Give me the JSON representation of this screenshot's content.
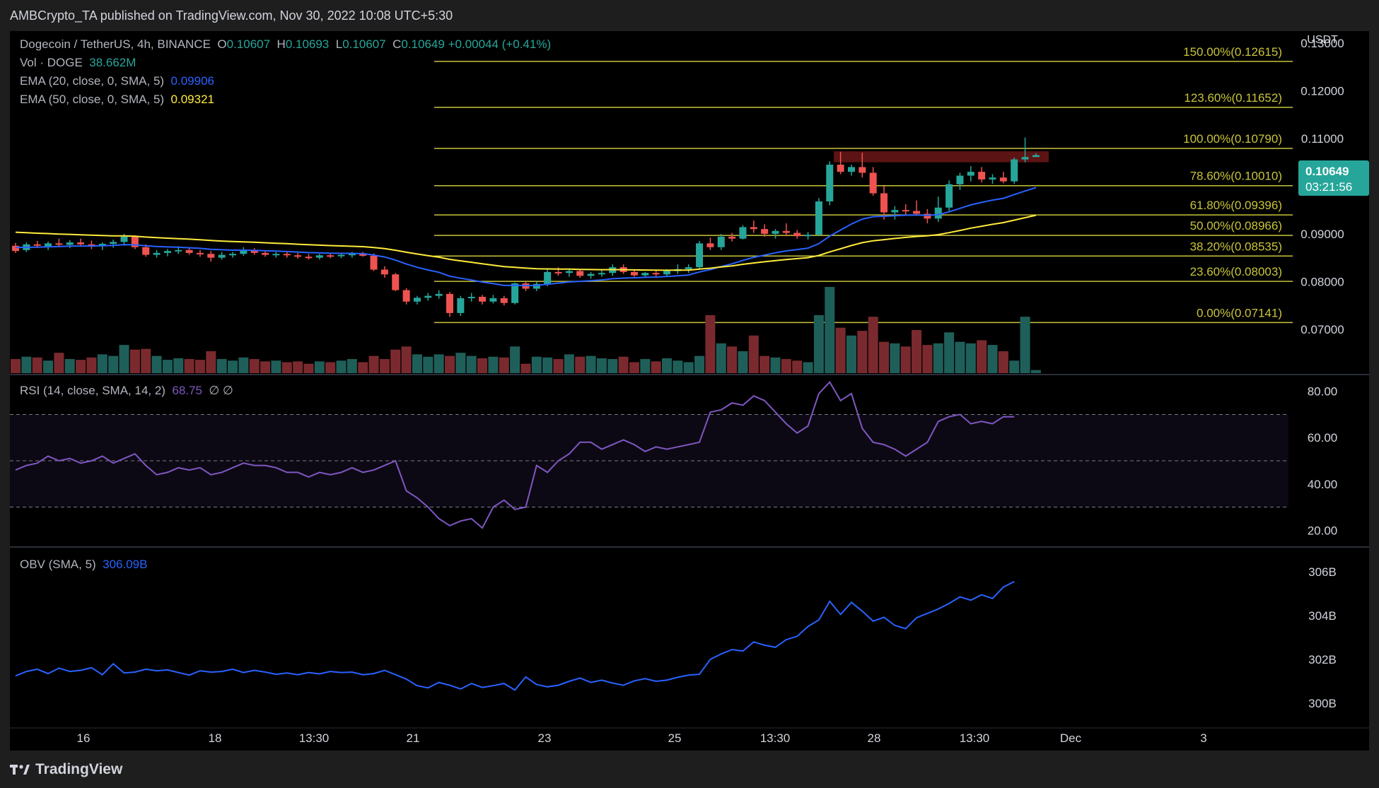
{
  "header": {
    "published": "AMBCrypto_TA published on TradingView.com, Nov 30, 2022 10:08 UTC+5:30"
  },
  "legend": {
    "symbol": "Dogecoin / TetherUS, 4h, BINANCE",
    "o_label": "O",
    "o_value": "0.10607",
    "h_label": "H",
    "h_value": "0.10693",
    "l_label": "L",
    "l_value": "0.10607",
    "c_label": "C",
    "c_value": "0.10649",
    "change": "+0.00044 (+0.41%)",
    "vol_label": "Vol · DOGE",
    "vol_value": "38.662M",
    "ema20_label": "EMA (20, close, 0, SMA, 5)",
    "ema20_value": "0.09906",
    "ema50_label": "EMA (50, close, 0, SMA, 5)",
    "ema50_value": "0.09321",
    "rsi_label": "RSI (14, close, SMA, 14, 2)",
    "rsi_value": "68.75",
    "rsi_extra": "∅ ∅",
    "obv_label": "OBV (SMA, 5)",
    "obv_value": "306.09B"
  },
  "currency": "USDT",
  "last_price": {
    "price": "0.10649",
    "countdown": "03:21:56"
  },
  "footer": {
    "brand": "TradingView"
  },
  "colors": {
    "up": "#26a69a",
    "down": "#ef5350",
    "ema20": "#2962ff",
    "ema50": "#ffeb3b",
    "fib": "#c8c43a",
    "rsi": "#7e57c2",
    "obv": "#2962ff"
  },
  "chart_data": [
    {
      "type": "candlestick",
      "title": "Dogecoin / TetherUS, 4h, BINANCE",
      "ylim": [
        0.0605,
        0.1325
      ],
      "y_ticks": [
        "0.07000",
        "0.08000",
        "0.09000",
        "0.10000",
        "0.11000",
        "0.12000",
        "0.13000"
      ],
      "x_ticks": [
        "16",
        "18",
        "13:30",
        "21",
        "23",
        "25",
        "13:30",
        "28",
        "13:30",
        "Dec",
        "3"
      ],
      "fib_levels": [
        {
          "label": "0.00%(0.07141)",
          "value": 0.07141
        },
        {
          "label": "23.60%(0.08003)",
          "value": 0.08003
        },
        {
          "label": "38.20%(0.08535)",
          "value": 0.08535
        },
        {
          "label": "50.00%(0.08966)",
          "value": 0.08966
        },
        {
          "label": "61.80%(0.09396)",
          "value": 0.09396
        },
        {
          "label": "78.60%(0.10010)",
          "value": 0.1001
        },
        {
          "label": "100.00%(0.10790)",
          "value": 0.1079
        },
        {
          "label": "123.60%(0.11652)",
          "value": 0.11652
        },
        {
          "label": "150.00%(0.12615)",
          "value": 0.12615
        }
      ],
      "resistance_zone": [
        0.105,
        0.1073
      ],
      "candles": [
        [
          0.0875,
          0.0881,
          0.086,
          0.0864
        ],
        [
          0.0866,
          0.0882,
          0.0862,
          0.0878
        ],
        [
          0.0878,
          0.0885,
          0.087,
          0.0875
        ],
        [
          0.0874,
          0.0884,
          0.0866,
          0.088
        ],
        [
          0.088,
          0.089,
          0.0872,
          0.0877
        ],
        [
          0.0877,
          0.0887,
          0.087,
          0.0882
        ],
        [
          0.0882,
          0.089,
          0.0874,
          0.0878
        ],
        [
          0.0878,
          0.0886,
          0.0868,
          0.0874
        ],
        [
          0.0874,
          0.0882,
          0.0866,
          0.0879
        ],
        [
          0.0879,
          0.0888,
          0.0871,
          0.0883
        ],
        [
          0.0883,
          0.09,
          0.0875,
          0.0894
        ],
        [
          0.0894,
          0.0897,
          0.0868,
          0.0872
        ],
        [
          0.0872,
          0.0878,
          0.0852,
          0.0856
        ],
        [
          0.0856,
          0.0866,
          0.085,
          0.086
        ],
        [
          0.086,
          0.0868,
          0.0853,
          0.0864
        ],
        [
          0.0864,
          0.0874,
          0.0858,
          0.0866
        ],
        [
          0.0866,
          0.0872,
          0.0856,
          0.086
        ],
        [
          0.086,
          0.0866,
          0.0852,
          0.0858
        ],
        [
          0.0858,
          0.0864,
          0.0842,
          0.085
        ],
        [
          0.085,
          0.0862,
          0.0846,
          0.0856
        ],
        [
          0.0856,
          0.0862,
          0.085,
          0.0858
        ],
        [
          0.0858,
          0.0872,
          0.0854,
          0.0866
        ],
        [
          0.0866,
          0.087,
          0.0856,
          0.086
        ],
        [
          0.086,
          0.0866,
          0.0852,
          0.0856
        ],
        [
          0.0856,
          0.0862,
          0.085,
          0.0858
        ],
        [
          0.0858,
          0.0862,
          0.085,
          0.0855
        ],
        [
          0.0855,
          0.086,
          0.0848,
          0.0852
        ],
        [
          0.0852,
          0.0858,
          0.0846,
          0.085
        ],
        [
          0.085,
          0.0858,
          0.0846,
          0.0855
        ],
        [
          0.0855,
          0.086,
          0.0849,
          0.0853
        ],
        [
          0.0853,
          0.0858,
          0.0849,
          0.0856
        ],
        [
          0.0856,
          0.0862,
          0.085,
          0.0858
        ],
        [
          0.0858,
          0.0862,
          0.0852,
          0.0854
        ],
        [
          0.0854,
          0.0859,
          0.0822,
          0.0825
        ],
        [
          0.0825,
          0.0832,
          0.0808,
          0.0815
        ],
        [
          0.0815,
          0.0818,
          0.078,
          0.0782
        ],
        [
          0.0782,
          0.0786,
          0.0752,
          0.0758
        ],
        [
          0.0758,
          0.077,
          0.0752,
          0.0766
        ],
        [
          0.0766,
          0.0776,
          0.076,
          0.077
        ],
        [
          0.077,
          0.0782,
          0.0764,
          0.0774
        ],
        [
          0.0774,
          0.0778,
          0.0726,
          0.0734
        ],
        [
          0.0734,
          0.077,
          0.0728,
          0.0765
        ],
        [
          0.0765,
          0.0776,
          0.0758,
          0.0768
        ],
        [
          0.0768,
          0.0772,
          0.0752,
          0.0758
        ],
        [
          0.0758,
          0.0772,
          0.0754,
          0.0765
        ],
        [
          0.0765,
          0.077,
          0.075,
          0.0755
        ],
        [
          0.0755,
          0.0798,
          0.0752,
          0.0796
        ],
        [
          0.0796,
          0.08,
          0.078,
          0.0785
        ],
        [
          0.0785,
          0.08,
          0.078,
          0.0795
        ],
        [
          0.0795,
          0.0825,
          0.079,
          0.082
        ],
        [
          0.082,
          0.083,
          0.0812,
          0.0818
        ],
        [
          0.0818,
          0.0826,
          0.081,
          0.0822
        ],
        [
          0.0822,
          0.0826,
          0.0808,
          0.0812
        ],
        [
          0.0812,
          0.082,
          0.0806,
          0.0816
        ],
        [
          0.0816,
          0.0826,
          0.081,
          0.0818
        ],
        [
          0.0818,
          0.0836,
          0.0812,
          0.083
        ],
        [
          0.083,
          0.0836,
          0.0816,
          0.082
        ],
        [
          0.082,
          0.0826,
          0.081,
          0.0813
        ],
        [
          0.0813,
          0.082,
          0.0808,
          0.0818
        ],
        [
          0.0818,
          0.0824,
          0.081,
          0.0815
        ],
        [
          0.0815,
          0.0826,
          0.081,
          0.0822
        ],
        [
          0.0822,
          0.0836,
          0.0816,
          0.0826
        ],
        [
          0.0826,
          0.0836,
          0.0818,
          0.083
        ],
        [
          0.083,
          0.0885,
          0.0826,
          0.088
        ],
        [
          0.088,
          0.0892,
          0.0866,
          0.0872
        ],
        [
          0.0872,
          0.09,
          0.0866,
          0.0894
        ],
        [
          0.0894,
          0.0902,
          0.0884,
          0.089
        ],
        [
          0.089,
          0.0918,
          0.0888,
          0.0914
        ],
        [
          0.0914,
          0.0928,
          0.0902,
          0.091
        ],
        [
          0.091,
          0.092,
          0.0894,
          0.09
        ],
        [
          0.09,
          0.091,
          0.089,
          0.0906
        ],
        [
          0.0906,
          0.0922,
          0.0895,
          0.0902
        ],
        [
          0.0902,
          0.0908,
          0.089,
          0.0895
        ],
        [
          0.0895,
          0.0904,
          0.0888,
          0.0898
        ],
        [
          0.0898,
          0.0975,
          0.0895,
          0.0968
        ],
        [
          0.0968,
          0.1052,
          0.096,
          0.1045
        ],
        [
          0.1045,
          0.1072,
          0.1025,
          0.103
        ],
        [
          0.103,
          0.1045,
          0.1022,
          0.104
        ],
        [
          0.104,
          0.107,
          0.1018,
          0.1028
        ],
        [
          0.1028,
          0.104,
          0.098,
          0.0985
        ],
        [
          0.0985,
          0.1,
          0.093,
          0.0945
        ],
        [
          0.0945,
          0.0958,
          0.093,
          0.095
        ],
        [
          0.095,
          0.0962,
          0.0938,
          0.0948
        ],
        [
          0.0948,
          0.097,
          0.0938,
          0.0942
        ],
        [
          0.0942,
          0.0952,
          0.0922,
          0.0932
        ],
        [
          0.0932,
          0.0978,
          0.0925,
          0.0955
        ],
        [
          0.0955,
          0.1012,
          0.0948,
          0.1004
        ],
        [
          0.1004,
          0.1028,
          0.0992,
          0.1022
        ],
        [
          0.1022,
          0.1042,
          0.101,
          0.103
        ],
        [
          0.103,
          0.104,
          0.1008,
          0.1014
        ],
        [
          0.1014,
          0.1025,
          0.1005,
          0.1018
        ],
        [
          0.1018,
          0.103,
          0.1006,
          0.101
        ],
        [
          0.101,
          0.106,
          0.1005,
          0.1056
        ],
        [
          0.1056,
          0.1102,
          0.105,
          0.1061
        ],
        [
          0.1061,
          0.1069,
          0.1061,
          0.1065
        ]
      ],
      "volume": [
        18,
        21,
        20,
        16,
        26,
        18,
        17,
        20,
        24,
        22,
        36,
        30,
        31,
        22,
        17,
        19,
        18,
        17,
        28,
        18,
        16,
        20,
        18,
        15,
        16,
        14,
        15,
        12,
        15,
        14,
        16,
        18,
        14,
        22,
        18,
        30,
        34,
        24,
        21,
        24,
        22,
        26,
        22,
        19,
        21,
        20,
        34,
        12,
        21,
        20,
        18,
        24,
        21,
        22,
        19,
        18,
        21,
        14,
        18,
        15,
        19,
        16,
        14,
        22,
        74,
        38,
        34,
        28,
        48,
        22,
        20,
        18,
        16,
        14,
        74,
        110,
        58,
        48,
        54,
        72,
        40,
        38,
        34,
        55,
        36,
        38,
        52,
        40,
        38,
        42,
        36,
        28,
        16,
        72,
        4
      ]
    },
    {
      "type": "line",
      "title": "RSI (14, close, SMA, 14, 2)",
      "ylim": [
        14,
        86
      ],
      "y_ticks": [
        "20.00",
        "40.00",
        "60.00",
        "80.00"
      ],
      "band": [
        30,
        70
      ],
      "values": [
        46,
        48,
        49,
        52,
        50,
        51,
        49,
        50,
        52,
        49,
        51,
        53,
        48,
        44,
        45,
        47,
        46,
        47,
        44,
        45,
        47,
        49,
        48,
        48,
        47,
        45,
        45,
        43,
        45,
        44,
        45,
        47,
        45,
        46,
        48,
        50,
        37,
        34,
        30,
        25,
        22,
        24,
        25,
        21,
        30,
        33,
        29,
        30,
        48,
        45,
        50,
        53,
        58,
        58,
        55,
        57,
        59,
        57,
        54,
        56,
        55,
        56,
        57,
        58,
        71,
        72,
        75,
        74,
        78,
        76,
        71,
        66,
        62,
        65,
        79,
        84,
        76,
        79,
        64,
        58,
        57,
        55,
        52,
        55,
        58,
        67,
        69,
        70,
        66,
        67,
        66,
        69,
        69
      ],
      "last": "68.75"
    },
    {
      "type": "line",
      "title": "OBV (SMA, 5)",
      "ylim": [
        299.0,
        307.0
      ],
      "y_ticks": [
        "300B",
        "302B",
        "304B",
        "306B"
      ],
      "values": [
        301.25,
        301.45,
        301.55,
        301.35,
        301.6,
        301.45,
        301.5,
        301.62,
        301.3,
        301.8,
        301.38,
        301.42,
        301.55,
        301.48,
        301.52,
        301.4,
        301.28,
        301.48,
        301.42,
        301.45,
        301.55,
        301.4,
        301.5,
        301.42,
        301.32,
        301.38,
        301.3,
        301.4,
        301.34,
        301.45,
        301.4,
        301.42,
        301.3,
        301.35,
        301.5,
        301.3,
        301.1,
        300.8,
        300.7,
        300.95,
        300.82,
        300.65,
        300.9,
        300.72,
        300.8,
        300.9,
        300.6,
        301.2,
        300.85,
        300.75,
        300.82,
        301.0,
        301.15,
        300.95,
        301.05,
        300.92,
        300.82,
        301.02,
        301.12,
        301.0,
        301.05,
        301.18,
        301.28,
        301.32,
        302.0,
        302.25,
        302.45,
        302.38,
        302.8,
        302.65,
        302.55,
        302.9,
        303.05,
        303.5,
        303.8,
        304.65,
        304.05,
        304.6,
        304.2,
        303.75,
        303.92,
        303.55,
        303.4,
        303.9,
        304.1,
        304.3,
        304.55,
        304.85,
        304.7,
        304.95,
        304.78,
        305.3,
        305.55
      ]
    }
  ]
}
